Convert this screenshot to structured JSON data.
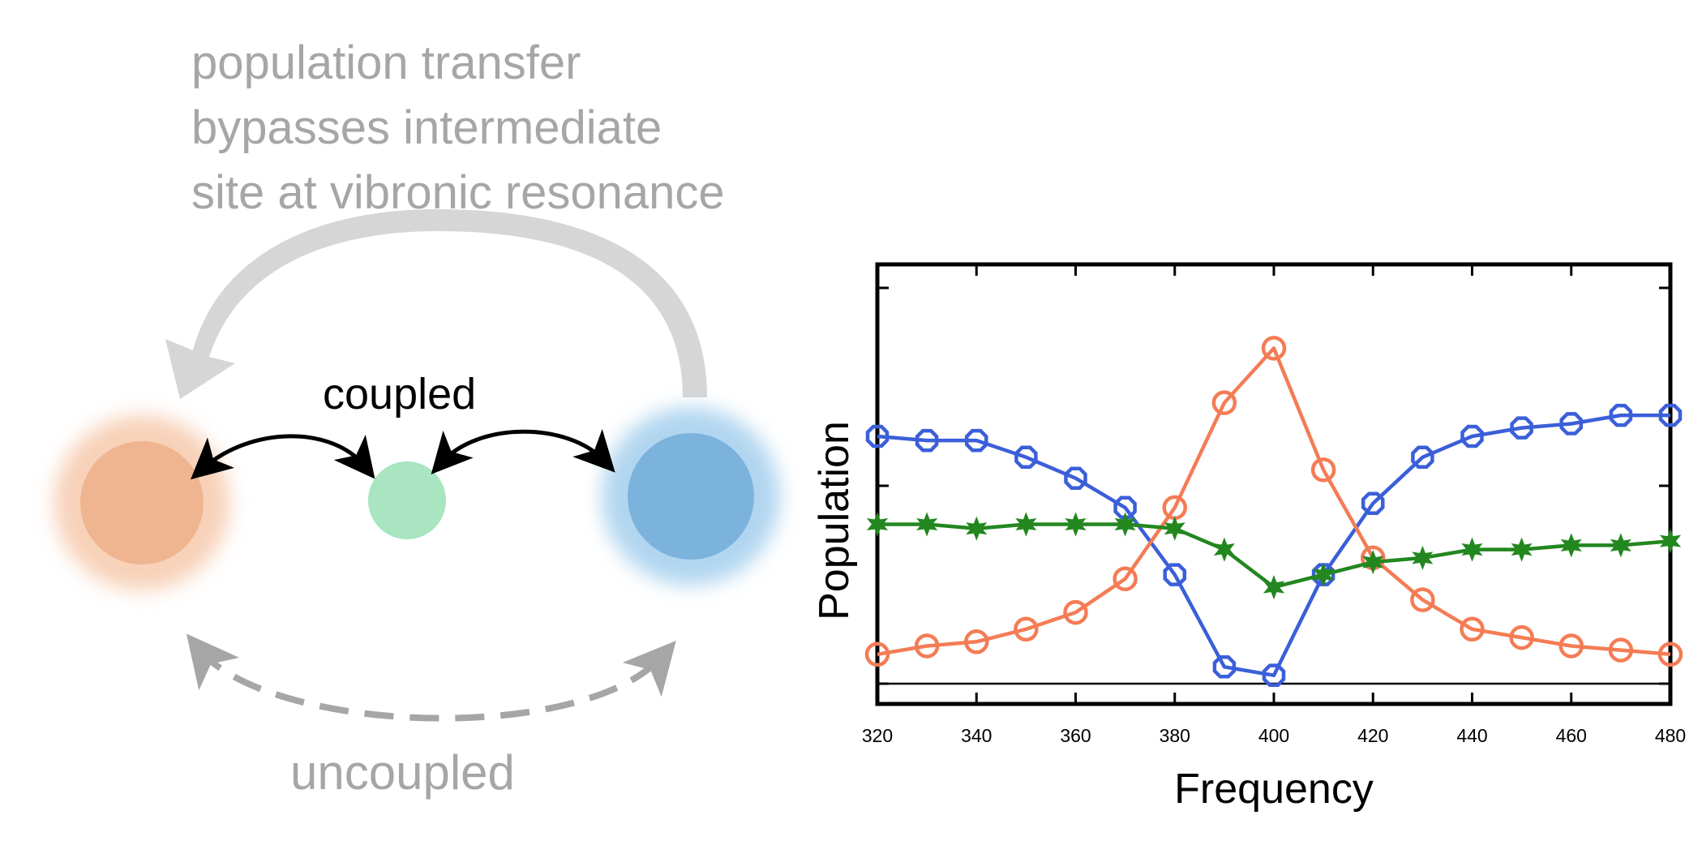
{
  "diagram": {
    "caption_lines": [
      "population transfer",
      "bypasses intermediate",
      "site at vibronic resonance"
    ],
    "coupled_label": "coupled",
    "uncoupled_label": "uncoupled",
    "colors": {
      "site_left": "#efb590",
      "site_middle": "#a8e5c0",
      "site_right": "#7cb3dd",
      "bypass_arrow": "#d6d6d6",
      "coupled_arrows": "#000000",
      "uncoupled_arrow": "#a6a6a6"
    }
  },
  "chart_data": {
    "type": "line",
    "xlabel": "Frequency",
    "ylabel": "Population",
    "xlim": [
      320,
      480
    ],
    "ylim": [
      0,
      1
    ],
    "x_ticks": [
      320,
      340,
      360,
      380,
      400,
      420,
      440,
      460,
      480
    ],
    "y_tick_labels_shown": false,
    "x": [
      320,
      330,
      340,
      350,
      360,
      370,
      380,
      390,
      400,
      410,
      420,
      430,
      440,
      450,
      460,
      470,
      480
    ],
    "series": [
      {
        "color": "#3b5fd9",
        "marker": "octagon-open",
        "values": [
          0.59,
          0.58,
          0.58,
          0.54,
          0.49,
          0.42,
          0.26,
          0.04,
          0.02,
          0.26,
          0.43,
          0.54,
          0.59,
          0.61,
          0.62,
          0.64,
          0.64
        ]
      },
      {
        "color": "#f47c55",
        "marker": "circle-open",
        "values": [
          0.07,
          0.09,
          0.1,
          0.13,
          0.17,
          0.25,
          0.42,
          0.67,
          0.8,
          0.51,
          0.3,
          0.2,
          0.13,
          0.11,
          0.09,
          0.08,
          0.07
        ]
      },
      {
        "color": "#23871f",
        "marker": "star-filled",
        "values": [
          0.38,
          0.38,
          0.37,
          0.38,
          0.38,
          0.38,
          0.37,
          0.32,
          0.23,
          0.26,
          0.29,
          0.3,
          0.32,
          0.32,
          0.33,
          0.33,
          0.34
        ]
      }
    ]
  }
}
